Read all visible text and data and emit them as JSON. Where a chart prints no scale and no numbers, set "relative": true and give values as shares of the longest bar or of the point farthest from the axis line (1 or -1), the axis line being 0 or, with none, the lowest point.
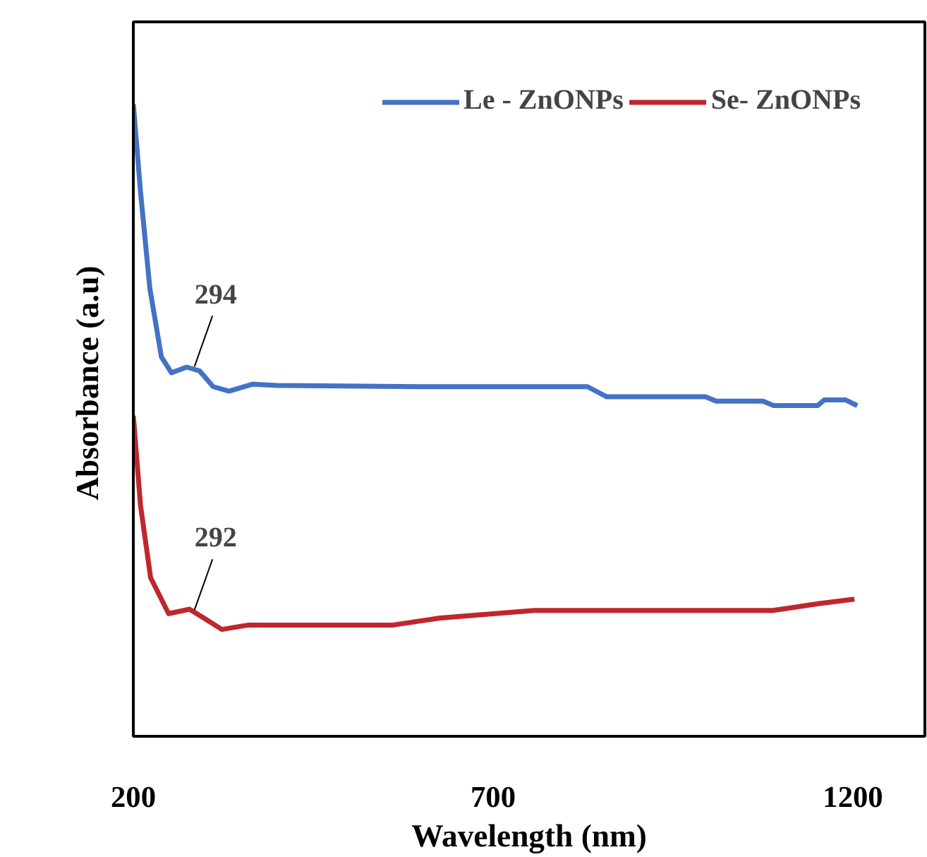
{
  "chart_data": {
    "type": "line",
    "xlabel": "Wavelength (nm)",
    "ylabel": "Absorbance  (a.u)",
    "relative": true,
    "xlim": [
      200,
      1300
    ],
    "xticks": [
      200,
      700,
      1200
    ],
    "grid": false,
    "legend": "top",
    "line_style": "solid",
    "marker": "none",
    "series": [
      {
        "name": "Le - ZnONPs",
        "color": "#4472c4",
        "x": [
          200,
          210,
          223,
          239,
          253,
          274,
          292,
          311,
          333,
          366,
          399,
          600,
          831,
          858,
          995,
          1010,
          1075,
          1090,
          1151,
          1160,
          1190,
          1206
        ],
        "values": [
          1.0,
          0.861,
          0.708,
          0.6,
          0.575,
          0.584,
          0.578,
          0.553,
          0.546,
          0.557,
          0.555,
          0.553,
          0.553,
          0.537,
          0.537,
          0.53,
          0.53,
          0.523,
          0.523,
          0.532,
          0.532,
          0.523
        ]
      },
      {
        "name": "Se- ZnONPs",
        "color": "#c0262d",
        "x": [
          200,
          210,
          224,
          249,
          278,
          298,
          323,
          360,
          561,
          626,
          757,
          1089,
          1153,
          1202
        ],
        "values": [
          0.507,
          0.365,
          0.251,
          0.194,
          0.201,
          0.187,
          0.169,
          0.176,
          0.176,
          0.187,
          0.199,
          0.199,
          0.21,
          0.217
        ]
      }
    ],
    "annotations": [
      {
        "text": "294",
        "x": 285,
        "y": 0.585
      },
      {
        "text": "292",
        "x": 285,
        "y": 0.2
      }
    ]
  }
}
